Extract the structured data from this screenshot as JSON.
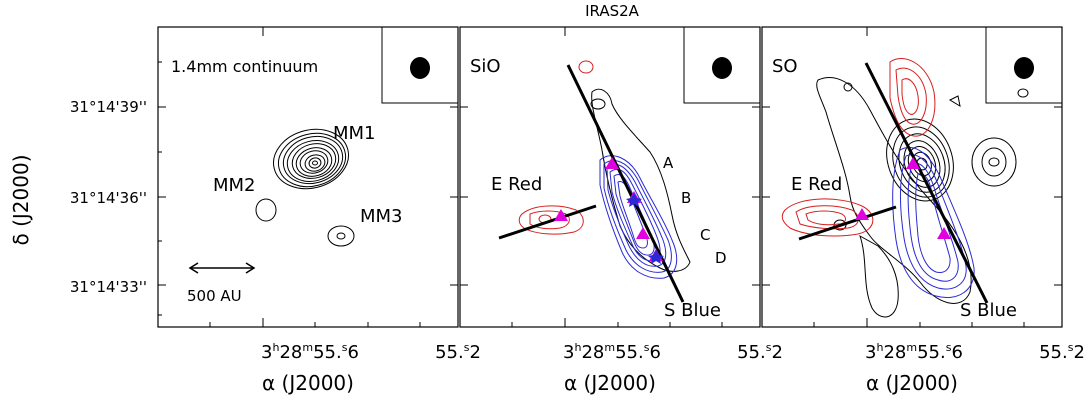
{
  "figure": {
    "title": "IRAS2A",
    "ylabel": "δ (J2000)",
    "xlabel": "α (J2000)",
    "yticks": [
      "31°14'39''",
      "31°14'36''",
      "31°14'33''"
    ],
    "colors": {
      "ink": "#000000",
      "blue": "#2a2ad6",
      "red": "#d81e1e",
      "magenta": "#e000e0"
    }
  },
  "panels": [
    {
      "label": "1.4mm continuum",
      "sources": [
        "MM1",
        "MM2",
        "MM3"
      ],
      "scalebar": "500 AU",
      "xticks": {
        "center": "3h28m55.s6",
        "right": "55.s2"
      }
    },
    {
      "label": "SiO",
      "annotations": [
        "E Red",
        "S Blue",
        "A",
        "B",
        "C",
        "D"
      ],
      "xticks": {
        "center": "3h28m55.s6",
        "right": "55.s2"
      }
    },
    {
      "label": "SO",
      "annotations": [
        "E Red",
        "S Blue"
      ],
      "xticks": {
        "center": "3h28m55.s6",
        "right": "55.s2"
      }
    }
  ]
}
